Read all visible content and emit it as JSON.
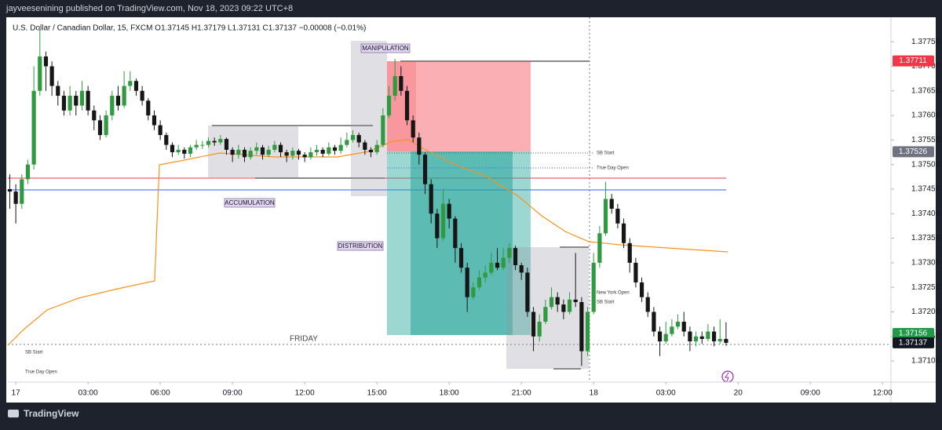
{
  "header": {
    "byline": "jayveesenining published on TradingView.com, Nov 18, 2023 09:22 UTC+8",
    "symbol": "U.S. Dollar / Canadian Dollar, 15, FXCM  O1.37145  H1.37179  L1.37131  C1.37137  −0.00008 (−0.01%)"
  },
  "chart_data": {
    "type": "candlestick",
    "x": [
      -0.25,
      0,
      0.25,
      0.5,
      0.75,
      1,
      1.25,
      1.5,
      1.75,
      2,
      2.25,
      2.5,
      2.75,
      3,
      3.25,
      3.5,
      3.75,
      4,
      4.25,
      4.5,
      4.75,
      5,
      5.25,
      5.5,
      5.75,
      6,
      6.25,
      6.5,
      6.75,
      7,
      7.25,
      7.5,
      7.75,
      8,
      8.25,
      8.5,
      8.75,
      9,
      9.25,
      9.5,
      9.75,
      10,
      10.25,
      10.5,
      10.75,
      11,
      11.25,
      11.5,
      11.75,
      12,
      12.25,
      12.5,
      12.75,
      13,
      13.25,
      13.5,
      13.75,
      14,
      14.25,
      14.5,
      14.75,
      15,
      15.25,
      15.5,
      15.75,
      16,
      16.25,
      16.5,
      16.75,
      17,
      17.25,
      17.5,
      17.75,
      18,
      18.25,
      18.5,
      18.75,
      19,
      19.25,
      19.5,
      19.75,
      20,
      20.25,
      20.5,
      20.75,
      21,
      21.25,
      21.5,
      21.75,
      22,
      22.25,
      22.5,
      22.75,
      23,
      23.25,
      23.5,
      23.75,
      24,
      24.25,
      24.5,
      24.75,
      25,
      25.25,
      25.5,
      25.75,
      26,
      26.25,
      26.5,
      26.75,
      27,
      27.25,
      27.5,
      27.75,
      28,
      28.25,
      28.5,
      28.75,
      29,
      29.25,
      29.5
    ],
    "open": [
      1.3745,
      1.37445,
      1.3742,
      1.3747,
      1.375,
      1.3765,
      1.3772,
      1.377,
      1.3766,
      1.3764,
      1.3761,
      1.3764,
      1.3762,
      1.3765,
      1.3761,
      1.3759,
      1.3756,
      1.376,
      1.3764,
      1.3762,
      1.3766,
      1.3767,
      1.3765,
      1.3763,
      1.376,
      1.3758,
      1.3756,
      1.3754,
      1.37525,
      1.3753,
      1.37522,
      1.37535,
      1.3754,
      1.3754,
      1.37548,
      1.37545,
      1.37552,
      1.3753,
      1.3752,
      1.3753,
      1.37515,
      1.37528,
      1.37535,
      1.3752,
      1.3753,
      1.3754,
      1.37525,
      1.37518,
      1.37528,
      1.3752,
      1.37515,
      1.37525,
      1.3753,
      1.37522,
      1.37535,
      1.37528,
      1.3754,
      1.3755,
      1.3756,
      1.37545,
      1.3753,
      1.37525,
      1.3754,
      1.376,
      1.3764,
      1.3768,
      1.3765,
      1.3759,
      1.37555,
      1.3752,
      1.3746,
      1.374,
      1.3735,
      1.3742,
      1.3739,
      1.3733,
      1.3729,
      1.3723,
      1.3725,
      1.3727,
      1.3728,
      1.373,
      1.3729,
      1.3731,
      1.3733,
      1.37295,
      1.3728,
      1.372,
      1.3715,
      1.3718,
      1.3721,
      1.3723,
      1.37215,
      1.372,
      1.37225,
      1.3722,
      1.3712,
      1.372,
      1.373,
      1.3736,
      1.3743,
      1.3741,
      1.3738,
      1.3734,
      1.373,
      1.3726,
      1.3723,
      1.372,
      1.3716,
      1.3714,
      1.37155,
      1.3717,
      1.3718,
      1.3716,
      1.3714,
      1.3715,
      1.37145,
      1.3716,
      1.3714,
      1.37145
    ],
    "high": [
      1.3748,
      1.3746,
      1.3748,
      1.3751,
      1.377,
      1.37775,
      1.3773,
      1.3771,
      1.3767,
      1.3765,
      1.3766,
      1.3765,
      1.3767,
      1.3766,
      1.3762,
      1.376,
      1.3761,
      1.3765,
      1.3766,
      1.3769,
      1.3769,
      1.37675,
      1.3766,
      1.37635,
      1.3761,
      1.3759,
      1.37565,
      1.37545,
      1.3754,
      1.37535,
      1.3754,
      1.3755,
      1.37548,
      1.37555,
      1.37555,
      1.3756,
      1.37555,
      1.37535,
      1.3754,
      1.37535,
      1.37535,
      1.37545,
      1.3754,
      1.37538,
      1.37548,
      1.37545,
      1.3753,
      1.37535,
      1.37532,
      1.37525,
      1.37535,
      1.3754,
      1.37535,
      1.37545,
      1.3754,
      1.37555,
      1.37565,
      1.3757,
      1.37565,
      1.3755,
      1.37535,
      1.3755,
      1.37615,
      1.3766,
      1.37715,
      1.377,
      1.3766,
      1.376,
      1.37565,
      1.37525,
      1.3747,
      1.3741,
      1.3745,
      1.3743,
      1.37395,
      1.3734,
      1.373,
      1.3726,
      1.37285,
      1.37295,
      1.3732,
      1.3733,
      1.3733,
      1.3734,
      1.37335,
      1.373,
      1.3729,
      1.3721,
      1.37195,
      1.37225,
      1.3725,
      1.3724,
      1.37225,
      1.3724,
      1.3732,
      1.3723,
      1.3721,
      1.3732,
      1.37375,
      1.37465,
      1.3744,
      1.3742,
      1.3739,
      1.3735,
      1.3731,
      1.3727,
      1.3724,
      1.3721,
      1.3717,
      1.3718,
      1.37185,
      1.37195,
      1.372,
      1.3717,
      1.3716,
      1.3716,
      1.37175,
      1.3717,
      1.37185,
      1.37179
    ],
    "low": [
      1.3741,
      1.3738,
      1.3741,
      1.3746,
      1.3749,
      1.3764,
      1.3765,
      1.3764,
      1.3762,
      1.376,
      1.376,
      1.376,
      1.3761,
      1.376,
      1.3757,
      1.3755,
      1.37555,
      1.3759,
      1.3761,
      1.37615,
      1.3765,
      1.3764,
      1.3762,
      1.3759,
      1.3757,
      1.3755,
      1.3753,
      1.37515,
      1.3752,
      1.37512,
      1.37515,
      1.3753,
      1.37532,
      1.37535,
      1.37538,
      1.3754,
      1.3752,
      1.37505,
      1.37512,
      1.37505,
      1.3751,
      1.3752,
      1.3751,
      1.37515,
      1.37525,
      1.37515,
      1.37505,
      1.3751,
      1.3751,
      1.37505,
      1.3751,
      1.37518,
      1.37515,
      1.37518,
      1.3752,
      1.37522,
      1.37535,
      1.37545,
      1.37535,
      1.3752,
      1.37515,
      1.3752,
      1.37535,
      1.37595,
      1.3763,
      1.3764,
      1.3758,
      1.37545,
      1.375,
      1.3744,
      1.3738,
      1.3733,
      1.37345,
      1.3737,
      1.373,
      1.3728,
      1.372,
      1.37225,
      1.37245,
      1.3726,
      1.37275,
      1.37285,
      1.37285,
      1.373,
      1.37285,
      1.37265,
      1.3719,
      1.3712,
      1.3714,
      1.37175,
      1.37205,
      1.372,
      1.37185,
      1.37195,
      1.3721,
      1.3709,
      1.3711,
      1.37195,
      1.3729,
      1.37355,
      1.374,
      1.3737,
      1.3733,
      1.3728,
      1.3725,
      1.3722,
      1.3719,
      1.3715,
      1.3711,
      1.37135,
      1.3715,
      1.37165,
      1.3715,
      1.3712,
      1.3713,
      1.37135,
      1.3714,
      1.3713,
      1.37135,
      1.37131
    ],
    "close": [
      1.37445,
      1.3742,
      1.3747,
      1.375,
      1.3765,
      1.3772,
      1.377,
      1.3766,
      1.3764,
      1.3761,
      1.3764,
      1.3762,
      1.3765,
      1.3761,
      1.3759,
      1.3756,
      1.376,
      1.3764,
      1.3762,
      1.3766,
      1.3767,
      1.3765,
      1.3763,
      1.376,
      1.3758,
      1.3756,
      1.3754,
      1.37525,
      1.3753,
      1.37522,
      1.37535,
      1.3754,
      1.3754,
      1.37548,
      1.37545,
      1.37552,
      1.3753,
      1.3752,
      1.3753,
      1.37515,
      1.37528,
      1.37535,
      1.3752,
      1.3753,
      1.3754,
      1.37525,
      1.37518,
      1.37528,
      1.3752,
      1.37515,
      1.37525,
      1.3753,
      1.37522,
      1.37535,
      1.37528,
      1.3754,
      1.3755,
      1.3756,
      1.37545,
      1.3753,
      1.37525,
      1.3754,
      1.376,
      1.3764,
      1.3768,
      1.3765,
      1.3759,
      1.37555,
      1.3752,
      1.3746,
      1.374,
      1.3735,
      1.3742,
      1.3739,
      1.3733,
      1.3729,
      1.3723,
      1.3725,
      1.3727,
      1.3728,
      1.373,
      1.3729,
      1.3731,
      1.3733,
      1.37295,
      1.3728,
      1.372,
      1.3715,
      1.3718,
      1.3721,
      1.3723,
      1.37215,
      1.372,
      1.37225,
      1.3722,
      1.3712,
      1.372,
      1.373,
      1.3736,
      1.3743,
      1.3741,
      1.3738,
      1.3734,
      1.373,
      1.3726,
      1.3723,
      1.372,
      1.3716,
      1.3714,
      1.37155,
      1.3717,
      1.3718,
      1.3716,
      1.3714,
      1.3715,
      1.37145,
      1.3716,
      1.3714,
      1.37145,
      1.37137
    ],
    "up_color": "#2f9a3f",
    "down_color": "#161616",
    "xlim": [
      -0.33,
      36.35
    ],
    "xticks": [
      {
        "value": 0,
        "label": "17"
      },
      {
        "value": 3,
        "label": "03:00"
      },
      {
        "value": 6,
        "label": "06:00"
      },
      {
        "value": 9,
        "label": "09:00"
      },
      {
        "value": 12,
        "label": "12:00"
      },
      {
        "value": 15,
        "label": "15:00"
      },
      {
        "value": 18,
        "label": "18:00"
      },
      {
        "value": 21,
        "label": "21:00"
      },
      {
        "value": 24,
        "label": "18"
      },
      {
        "value": 27,
        "label": "03:00"
      },
      {
        "value": 30,
        "label": "20"
      },
      {
        "value": 33,
        "label": "09:00"
      },
      {
        "value": 36,
        "label": "12:00"
      }
    ],
    "ylim": [
      1.37057,
      1.37803
    ],
    "yticks": [
      {
        "value": 1.371,
        "label": "1.37100"
      },
      {
        "value": 1.3715,
        "label": "1.37150"
      },
      {
        "value": 1.372,
        "label": "1.37200"
      },
      {
        "value": 1.3725,
        "label": "1.37250"
      },
      {
        "value": 1.373,
        "label": "1.37300"
      },
      {
        "value": 1.3735,
        "label": "1.37350"
      },
      {
        "value": 1.374,
        "label": "1.37400"
      },
      {
        "value": 1.3745,
        "label": "1.37450"
      },
      {
        "value": 1.375,
        "label": "1.37500"
      },
      {
        "value": 1.3755,
        "label": "1.37550"
      },
      {
        "value": 1.376,
        "label": "1.37600"
      },
      {
        "value": 1.3765,
        "label": "1.37650"
      },
      {
        "value": 1.377,
        "label": "1.37700"
      },
      {
        "value": 1.3775,
        "label": "1.37750"
      }
    ],
    "price_labels": [
      {
        "value": 1.37711,
        "label": "1.37711",
        "color": "#f23645"
      },
      {
        "value": 1.37526,
        "label": "1.37526",
        "color": "#6f7380"
      },
      {
        "value": 1.37156,
        "label": "1.37156",
        "color": "#1f9a46"
      },
      {
        "value": 1.37137,
        "label": "1.37137",
        "color": "#131722"
      }
    ],
    "annotations": [
      "MANIPULATION",
      "ACCUMULATION",
      "DISTRIBUTION",
      "FRIDAY",
      "SB Start",
      "True Day Open",
      "New York Open",
      "SB Start",
      "SB Start",
      "True Day Open"
    ]
  },
  "footer": {
    "brand": "TradingView"
  }
}
